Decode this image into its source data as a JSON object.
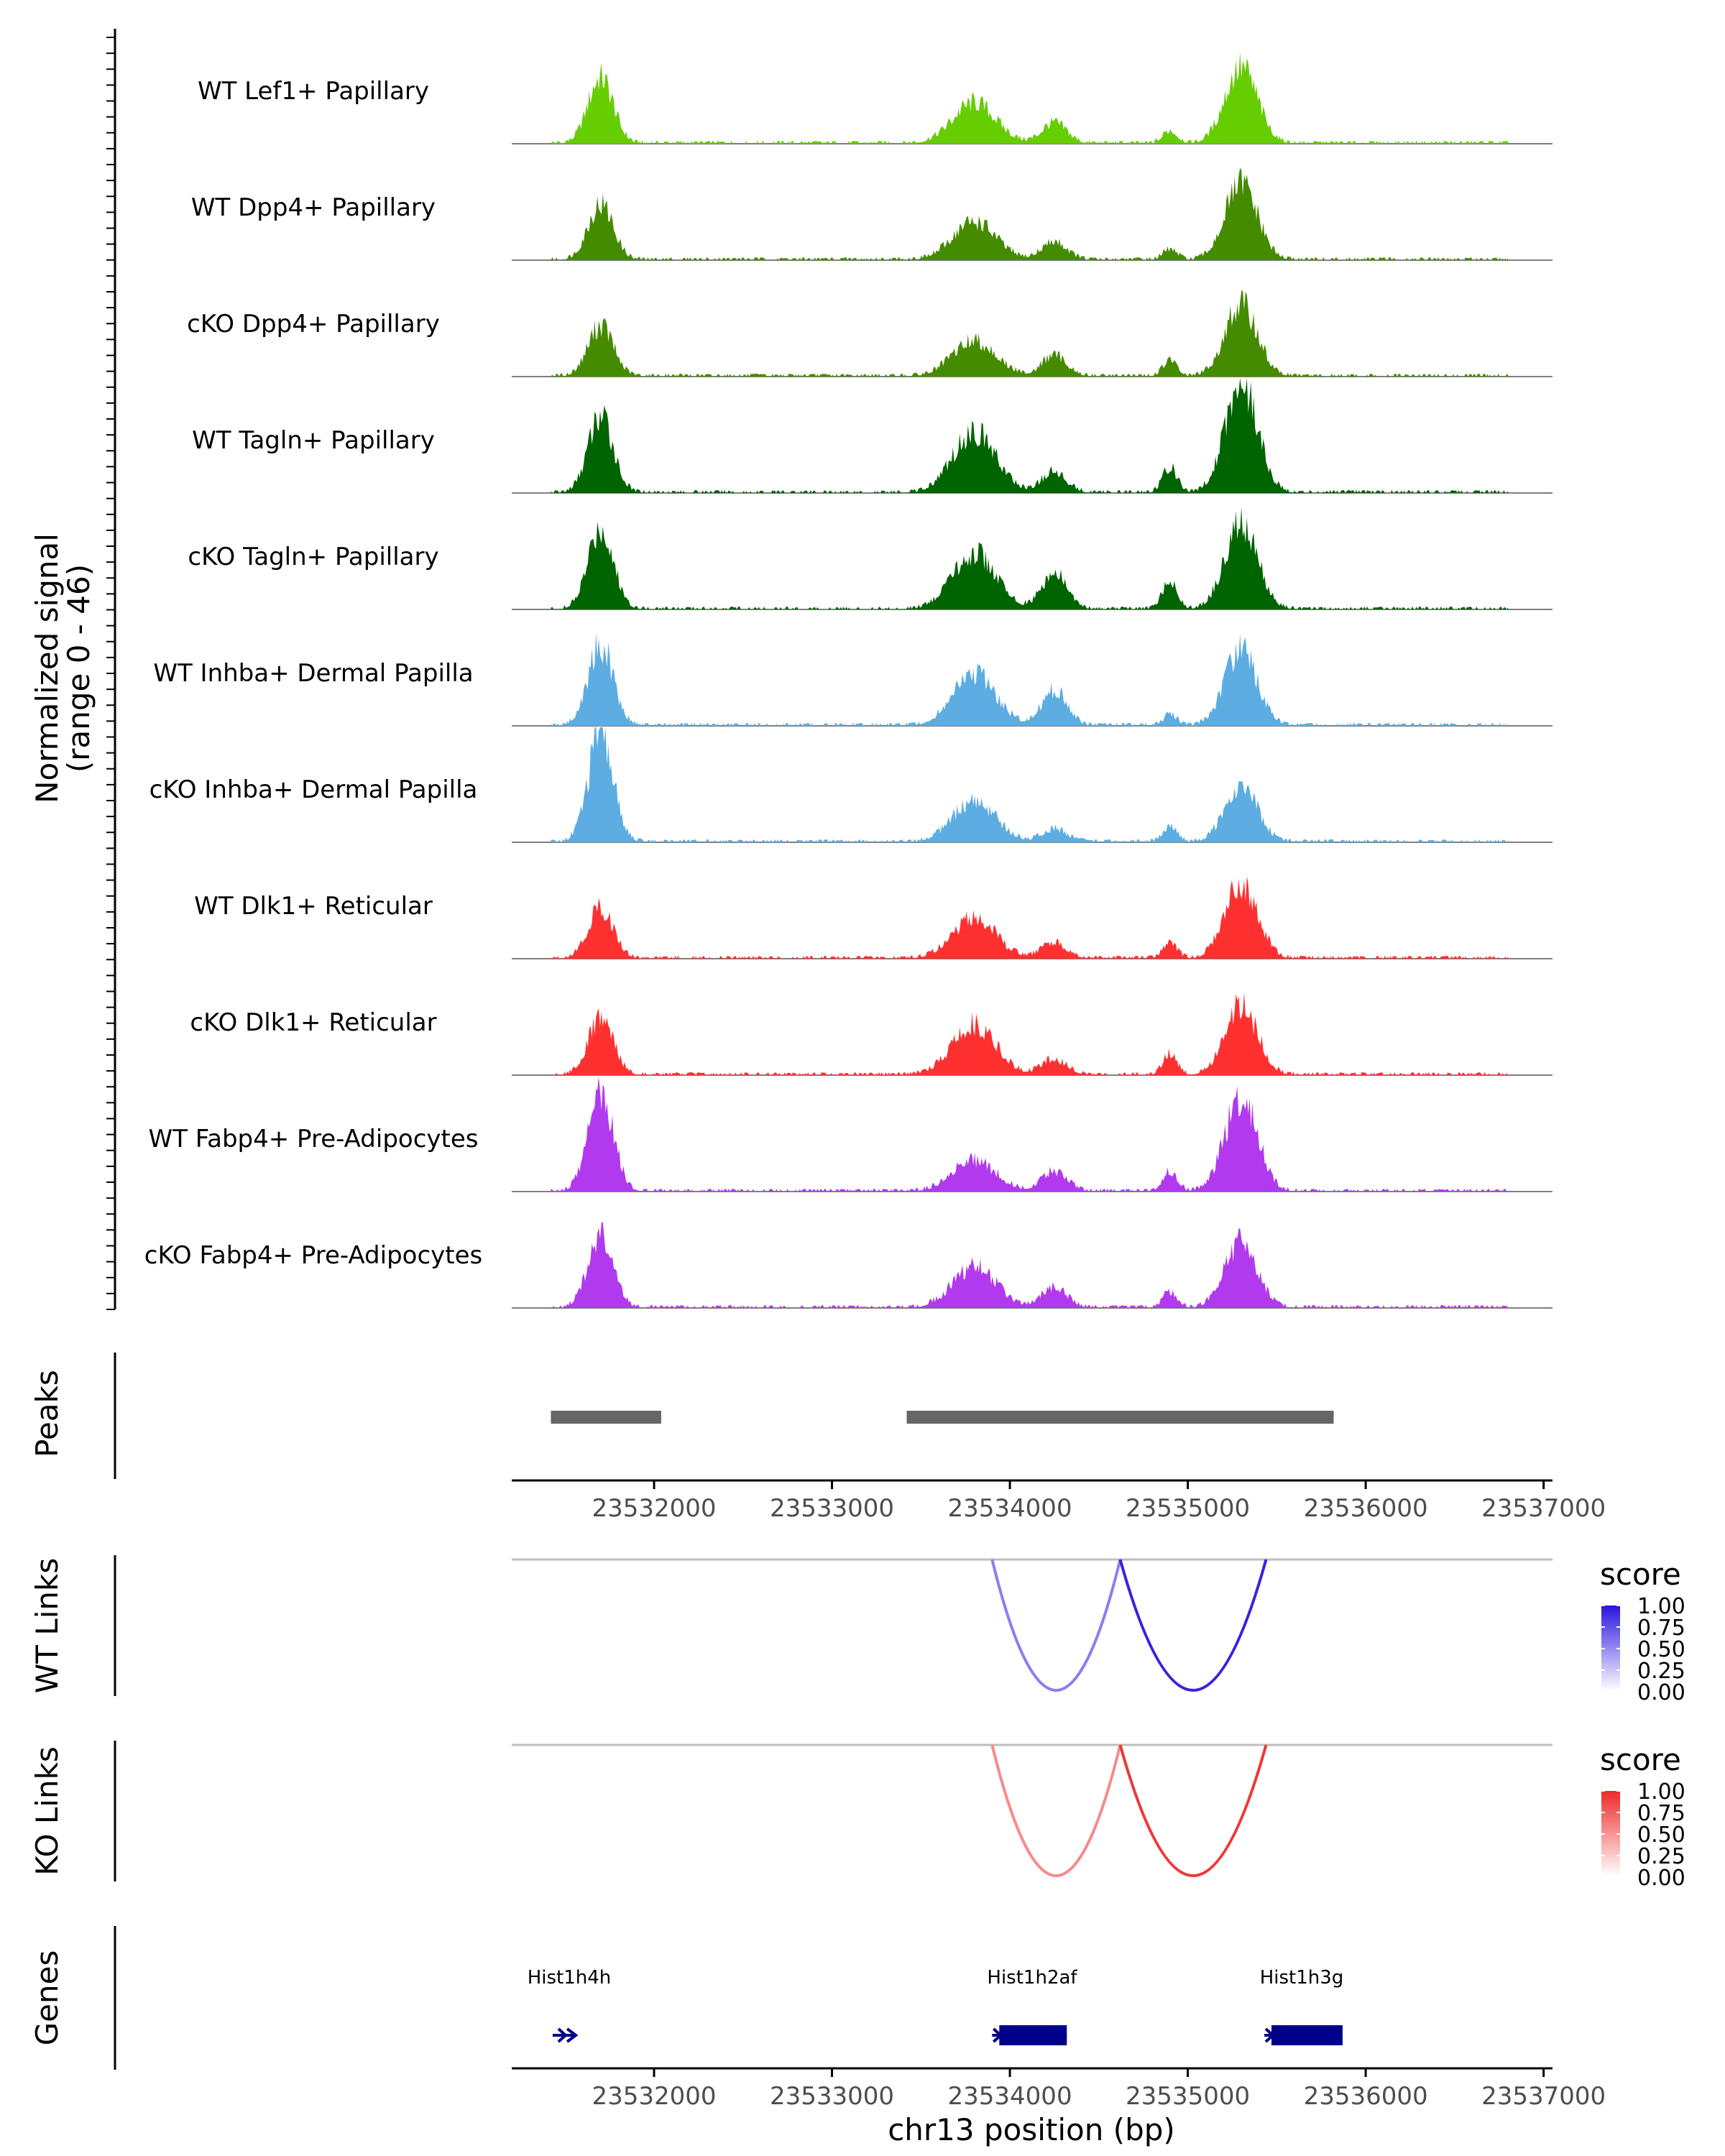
{
  "chart_data": {
    "type": "coverage-track",
    "region": "chr13",
    "xlim": [
      23531200,
      23537050
    ],
    "x_ticks": [
      23532000,
      23533000,
      23534000,
      23535000,
      23536000,
      23537000
    ],
    "x_tick_labels": [
      "23532000",
      "23533000",
      "23534000",
      "23535000",
      "23536000",
      "23537000"
    ],
    "xlabel": "chr13 position (bp)",
    "coverage": {
      "ylabel_line1": "Normalized signal",
      "ylabel_line2": "(range 0 - 46)",
      "ylim": [
        0,
        46
      ],
      "tracks": [
        {
          "label": "WT Lef1+ Papillary",
          "color": "#66CD00",
          "peaks": [
            [
              23531700,
              26,
              70
            ],
            [
              23533800,
              16,
              120
            ],
            [
              23534250,
              8,
              70
            ],
            [
              23535300,
              30,
              90
            ],
            [
              23534900,
              5,
              40
            ]
          ]
        },
        {
          "label": "WT Dpp4+ Papillary",
          "color": "#458B00",
          "peaks": [
            [
              23531700,
              22,
              70
            ],
            [
              23533800,
              15,
              120
            ],
            [
              23534250,
              7,
              70
            ],
            [
              23535300,
              30,
              90
            ],
            [
              23534900,
              4,
              40
            ]
          ]
        },
        {
          "label": "cKO Dpp4+ Papillary",
          "color": "#458B00",
          "peaks": [
            [
              23531700,
              20,
              70
            ],
            [
              23533800,
              14,
              120
            ],
            [
              23534250,
              8,
              70
            ],
            [
              23535300,
              28,
              90
            ],
            [
              23534900,
              6,
              40
            ]
          ]
        },
        {
          "label": "WT Tagln+ Papillary",
          "color": "#006400",
          "peaks": [
            [
              23531700,
              30,
              70
            ],
            [
              23533800,
              24,
              120
            ],
            [
              23534250,
              8,
              70
            ],
            [
              23535300,
              44,
              90
            ],
            [
              23534900,
              10,
              40
            ]
          ]
        },
        {
          "label": "cKO Tagln+ Papillary",
          "color": "#006400",
          "peaks": [
            [
              23531700,
              32,
              70
            ],
            [
              23533800,
              22,
              120
            ],
            [
              23534250,
              14,
              70
            ],
            [
              23535300,
              34,
              90
            ],
            [
              23534900,
              12,
              40
            ]
          ]
        },
        {
          "label": "WT Inhba+ Dermal Papilla",
          "color": "#5DADE2",
          "peaks": [
            [
              23531700,
              32,
              70
            ],
            [
              23533800,
              20,
              120
            ],
            [
              23534250,
              14,
              70
            ],
            [
              23535300,
              30,
              90
            ],
            [
              23534900,
              4,
              40
            ]
          ]
        },
        {
          "label": "cKO Inhba+ Dermal Papilla",
          "color": "#5DADE2",
          "peaks": [
            [
              23531700,
              42,
              70
            ],
            [
              23533800,
              16,
              120
            ],
            [
              23534250,
              5,
              70
            ],
            [
              23535300,
              22,
              90
            ],
            [
              23534900,
              6,
              40
            ]
          ]
        },
        {
          "label": "WT Dlk1+ Reticular",
          "color": "#FF3030",
          "peaks": [
            [
              23531700,
              20,
              70
            ],
            [
              23533800,
              16,
              120
            ],
            [
              23534250,
              6,
              70
            ],
            [
              23535300,
              30,
              90
            ],
            [
              23534900,
              6,
              40
            ]
          ]
        },
        {
          "label": "cKO Dlk1+ Reticular",
          "color": "#FF3030",
          "peaks": [
            [
              23531700,
              22,
              70
            ],
            [
              23533800,
              20,
              120
            ],
            [
              23534250,
              6,
              70
            ],
            [
              23535300,
              28,
              90
            ],
            [
              23534900,
              8,
              40
            ]
          ]
        },
        {
          "label": "WT Fabp4+ Pre-Adipocytes",
          "color": "#B23AEE",
          "peaks": [
            [
              23531700,
              40,
              70
            ],
            [
              23533800,
              12,
              120
            ],
            [
              23534250,
              8,
              70
            ],
            [
              23535300,
              38,
              90
            ],
            [
              23534900,
              8,
              40
            ]
          ]
        },
        {
          "label": "cKO Fabp4+ Pre-Adipocytes",
          "color": "#B23AEE",
          "peaks": [
            [
              23531700,
              28,
              70
            ],
            [
              23533800,
              16,
              120
            ],
            [
              23534250,
              8,
              70
            ],
            [
              23535300,
              26,
              90
            ],
            [
              23534900,
              6,
              40
            ]
          ]
        }
      ]
    },
    "peaks_track": {
      "label": "Peaks",
      "color": "#666666",
      "intervals": [
        [
          23531420,
          23532040
        ],
        [
          23533420,
          23535820
        ]
      ]
    },
    "link_tracks": [
      {
        "label": "WT Links",
        "legend_title": "score",
        "legend_ticks": [
          "1.00",
          "0.75",
          "0.50",
          "0.25",
          "0.00"
        ],
        "color_high": "#2B17E0",
        "color_low": "#FFFFFF",
        "links": [
          {
            "start": 23533900,
            "end": 23534620,
            "score": 0.55
          },
          {
            "start": 23534620,
            "end": 23535440,
            "score": 0.95
          }
        ]
      },
      {
        "label": "KO Links",
        "legend_title": "score",
        "legend_ticks": [
          "1.00",
          "0.75",
          "0.50",
          "0.25",
          "0.00"
        ],
        "color_high": "#EE2C2C",
        "color_low": "#FFFFFF",
        "links": [
          {
            "start": 23533900,
            "end": 23534620,
            "score": 0.55
          },
          {
            "start": 23534620,
            "end": 23535440,
            "score": 0.95
          }
        ]
      }
    ],
    "genes_track": {
      "label": "Genes",
      "color": "#00008B",
      "genes": [
        {
          "name": "Hist1h4h",
          "start": 23531430,
          "end": 23531560,
          "strand": "+"
        },
        {
          "name": "Hist1h2af",
          "start": 23533900,
          "end": 23534320,
          "strand": "+"
        },
        {
          "name": "Hist1h3g",
          "start": 23535430,
          "end": 23535870,
          "strand": "+"
        }
      ]
    }
  }
}
